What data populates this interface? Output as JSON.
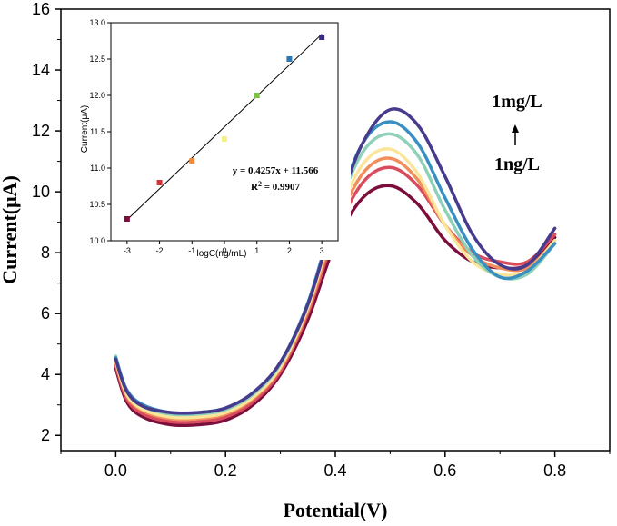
{
  "chart_data": [
    {
      "type": "line",
      "xlabel": "Potential(V)",
      "ylabel": "Current(μA)",
      "xlim": [
        -0.1,
        0.9
      ],
      "ylim": [
        1.5,
        16
      ],
      "x_ticks": [
        0.0,
        0.2,
        0.4,
        0.6,
        0.8
      ],
      "x_tick_labels": [
        "0.0",
        "0.2",
        "0.4",
        "0.6",
        "0.8"
      ],
      "y_ticks": [
        2,
        4,
        6,
        8,
        10,
        12,
        14,
        16
      ],
      "y_tick_labels": [
        "2",
        "4",
        "6",
        "8",
        "10",
        "12",
        "14",
        "16"
      ],
      "x": [
        0.0,
        0.02,
        0.05,
        0.1,
        0.15,
        0.2,
        0.25,
        0.3,
        0.35,
        0.4,
        0.45,
        0.5,
        0.55,
        0.6,
        0.65,
        0.7,
        0.75,
        0.8
      ],
      "series": [
        {
          "color": "#7b0e3b",
          "values": [
            4.2,
            3.1,
            2.6,
            2.35,
            2.35,
            2.5,
            3.0,
            4.0,
            5.8,
            8.3,
            9.8,
            10.2,
            9.6,
            8.4,
            7.7,
            7.5,
            7.6,
            8.5
          ]
        },
        {
          "color": "#d94c5e",
          "values": [
            4.3,
            3.2,
            2.7,
            2.45,
            2.45,
            2.6,
            3.1,
            4.1,
            6.0,
            8.6,
            10.3,
            10.8,
            10.2,
            8.9,
            8.0,
            7.7,
            7.7,
            8.6
          ]
        },
        {
          "color": "#f28e5b",
          "values": [
            4.4,
            3.3,
            2.8,
            2.55,
            2.55,
            2.7,
            3.2,
            4.2,
            6.1,
            8.8,
            10.6,
            11.1,
            10.4,
            8.9,
            7.9,
            7.5,
            7.5,
            8.4
          ]
        },
        {
          "color": "#fbe59a",
          "values": [
            4.45,
            3.35,
            2.85,
            2.6,
            2.6,
            2.75,
            3.25,
            4.25,
            6.2,
            9.0,
            10.9,
            11.4,
            10.6,
            8.9,
            7.7,
            7.3,
            7.4,
            8.4
          ]
        },
        {
          "color": "#8fd0b8",
          "values": [
            4.6,
            3.45,
            2.95,
            2.7,
            2.7,
            2.85,
            3.35,
            4.35,
            6.3,
            9.2,
            11.3,
            11.9,
            11.2,
            9.4,
            7.9,
            7.2,
            7.3,
            8.3
          ]
        },
        {
          "color": "#3a8fc2",
          "values": [
            4.55,
            3.5,
            3.0,
            2.75,
            2.75,
            2.9,
            3.4,
            4.4,
            6.35,
            9.3,
            11.6,
            12.3,
            11.6,
            9.8,
            8.1,
            7.2,
            7.4,
            8.3
          ]
        },
        {
          "color": "#473b8e",
          "values": [
            4.5,
            3.45,
            2.95,
            2.75,
            2.75,
            2.9,
            3.4,
            4.4,
            6.3,
            9.2,
            11.6,
            12.7,
            12.2,
            10.5,
            8.6,
            7.6,
            7.6,
            8.8
          ]
        }
      ],
      "annotations": {
        "top_label": "1mg/L",
        "bottom_label": "1ng/L"
      }
    },
    {
      "type": "scatter",
      "xlabel": "logC(ng/mL)",
      "ylabel": "Current(μA)",
      "xlim": [
        -3.5,
        3.5
      ],
      "ylim": [
        10.0,
        13.0
      ],
      "x_ticks": [
        -3,
        -2,
        -1,
        0,
        1,
        2,
        3
      ],
      "x_tick_labels": [
        "-3",
        "-2",
        "-1",
        "0",
        "1",
        "2",
        "3"
      ],
      "y_ticks": [
        10.0,
        10.5,
        11.0,
        11.5,
        12.0,
        12.5,
        13.0
      ],
      "y_tick_labels": [
        "10.0",
        "10.5",
        "11.0",
        "11.5",
        "12.0",
        "12.5",
        "13.0"
      ],
      "points": [
        {
          "x": -3,
          "y": 10.3,
          "color": "#7b0e3b"
        },
        {
          "x": -2,
          "y": 10.8,
          "color": "#d62f35"
        },
        {
          "x": -1,
          "y": 11.1,
          "color": "#f08a3a"
        },
        {
          "x": 0,
          "y": 11.4,
          "color": "#f6f08c"
        },
        {
          "x": 1,
          "y": 12.0,
          "color": "#7dc143"
        },
        {
          "x": 2,
          "y": 12.5,
          "color": "#2a77b3"
        },
        {
          "x": 3,
          "y": 12.8,
          "color": "#3d2a85"
        }
      ],
      "fit": {
        "slope": 0.4257,
        "intercept": 11.566
      },
      "equation": "y = 0.4257x + 11.566",
      "r2_label": "R",
      "r2_sup": "2",
      "r2_value": " = 0.9907"
    }
  ]
}
